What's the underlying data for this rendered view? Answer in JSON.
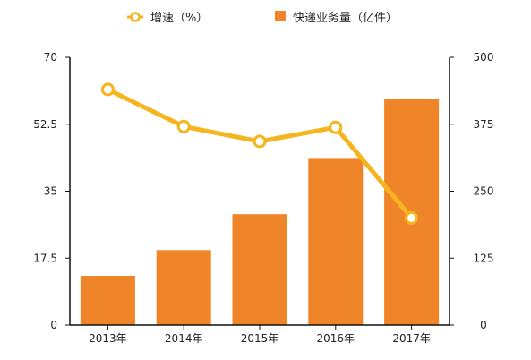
{
  "legend": {
    "line_label": "增速（%）",
    "bar_label": "快递业务量（亿件）"
  },
  "colors": {
    "bar": "#ef8428",
    "line": "#f4b51f",
    "axis": "#111111"
  },
  "chart_data": {
    "type": "bar",
    "categories": [
      "2013年",
      "2014年",
      "2015年",
      "2016年",
      "2017年"
    ],
    "series": [
      {
        "name": "快递业务量（亿件）",
        "type": "bar",
        "axis": "right",
        "values": [
          92,
          140,
          207,
          312,
          423
        ]
      },
      {
        "name": "增速（%）",
        "type": "line",
        "axis": "left",
        "values": [
          61.6,
          51.9,
          48.0,
          51.7,
          28.0
        ]
      }
    ],
    "y_left": {
      "min": 0,
      "max": 70,
      "ticks": [
        "0",
        "17.5",
        "35",
        "52.5",
        "70"
      ]
    },
    "y_right": {
      "min": 0,
      "max": 500,
      "ticks": [
        "0",
        "125",
        "250",
        "375",
        "500"
      ]
    },
    "grid": false,
    "legend_position": "top"
  }
}
